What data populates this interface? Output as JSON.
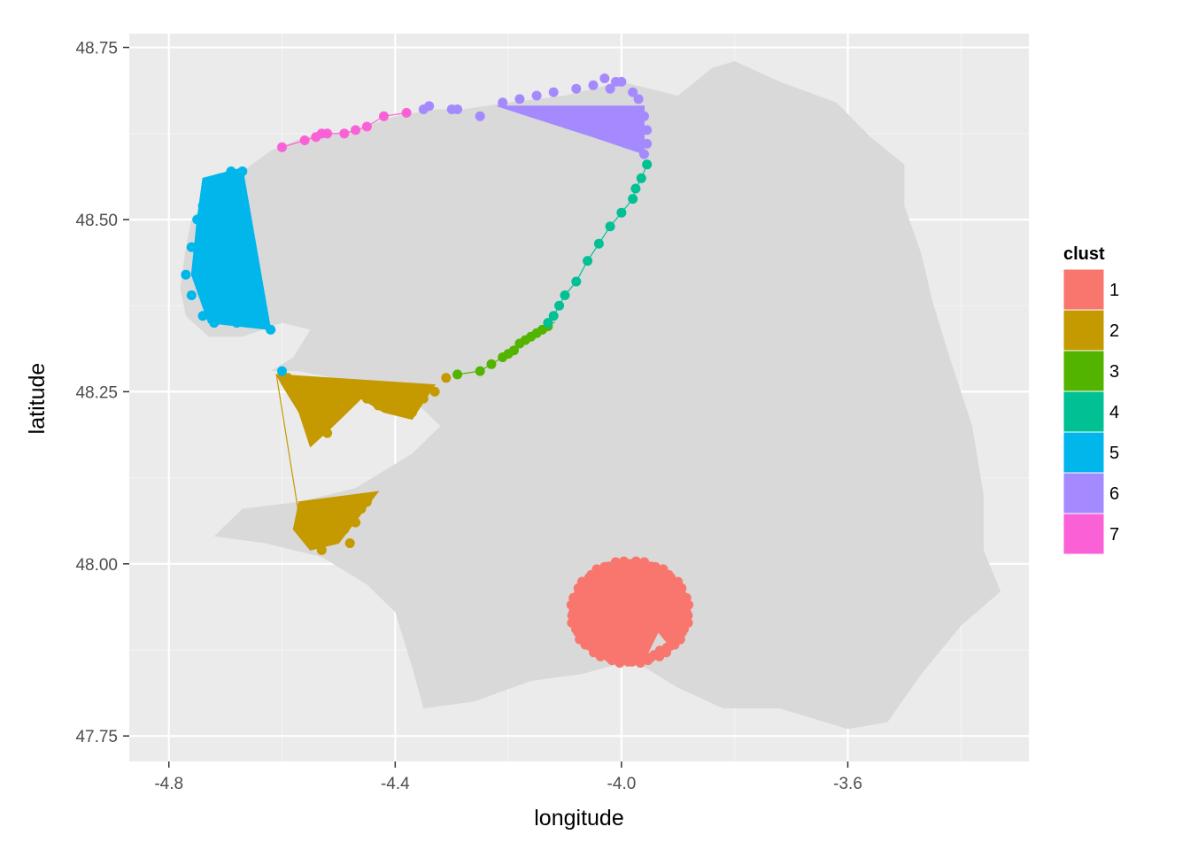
{
  "chart_data": {
    "type": "scatter",
    "xlabel": "longitude",
    "ylabel": "latitude",
    "xlim": [
      -4.87,
      -3.28
    ],
    "ylim": [
      47.713,
      48.77
    ],
    "x_ticks": [
      {
        "value": -4.8,
        "label": "-4.8"
      },
      {
        "value": -4.4,
        "label": "-4.4"
      },
      {
        "value": -4.0,
        "label": "-4.0"
      },
      {
        "value": -3.6,
        "label": "-3.6"
      }
    ],
    "y_ticks": [
      {
        "value": 48.75,
        "label": "48.75"
      },
      {
        "value": 48.5,
        "label": "48.50"
      },
      {
        "value": 48.25,
        "label": "48.25"
      },
      {
        "value": 48.0,
        "label": "48.00"
      },
      {
        "value": 47.75,
        "label": "47.75"
      }
    ],
    "x_minor": [
      -4.6,
      -4.2,
      -3.8,
      -3.4
    ],
    "y_minor": [
      48.625,
      48.375,
      48.125,
      47.875
    ],
    "grid": true,
    "legend_position": "right",
    "legend": {
      "title": "clust",
      "entries": [
        {
          "label": "1",
          "color": "#F8766D"
        },
        {
          "label": "2",
          "color": "#C49A00"
        },
        {
          "label": "3",
          "color": "#53B400"
        },
        {
          "label": "4",
          "color": "#00C094"
        },
        {
          "label": "5",
          "color": "#00B6EB"
        },
        {
          "label": "6",
          "color": "#A58AFF"
        },
        {
          "label": "7",
          "color": "#FB61D7"
        }
      ]
    },
    "colors": {
      "panel_background": "#EBEBEB",
      "land": "#D9D9D9",
      "grid": "#FFFFFF"
    },
    "land_outline": [
      [
        -4.77,
        48.46
      ],
      [
        -4.76,
        48.5
      ],
      [
        -4.73,
        48.53
      ],
      [
        -4.67,
        48.57
      ],
      [
        -4.62,
        48.6
      ],
      [
        -4.56,
        48.62
      ],
      [
        -4.47,
        48.63
      ],
      [
        -4.4,
        48.65
      ],
      [
        -4.33,
        48.66
      ],
      [
        -4.28,
        48.66
      ],
      [
        -4.2,
        48.67
      ],
      [
        -4.1,
        48.68
      ],
      [
        -4.0,
        48.7
      ],
      [
        -3.95,
        48.69
      ],
      [
        -3.9,
        48.68
      ],
      [
        -3.84,
        48.72
      ],
      [
        -3.8,
        48.73
      ],
      [
        -3.72,
        48.7
      ],
      [
        -3.62,
        48.67
      ],
      [
        -3.56,
        48.62
      ],
      [
        -3.5,
        48.58
      ],
      [
        -3.5,
        48.52
      ],
      [
        -3.47,
        48.45
      ],
      [
        -3.45,
        48.38
      ],
      [
        -3.42,
        48.3
      ],
      [
        -3.38,
        48.2
      ],
      [
        -3.36,
        48.1
      ],
      [
        -3.36,
        48.02
      ],
      [
        -3.33,
        47.96
      ],
      [
        -3.4,
        47.91
      ],
      [
        -3.47,
        47.84
      ],
      [
        -3.53,
        47.77
      ],
      [
        -3.6,
        47.76
      ],
      [
        -3.72,
        47.79
      ],
      [
        -3.82,
        47.79
      ],
      [
        -3.9,
        47.82
      ],
      [
        -3.98,
        47.86
      ],
      [
        -4.07,
        47.84
      ],
      [
        -4.16,
        47.83
      ],
      [
        -4.26,
        47.8
      ],
      [
        -4.35,
        47.79
      ],
      [
        -4.37,
        47.85
      ],
      [
        -4.4,
        47.93
      ],
      [
        -4.45,
        47.97
      ],
      [
        -4.53,
        48.01
      ],
      [
        -4.63,
        48.03
      ],
      [
        -4.72,
        48.04
      ],
      [
        -4.67,
        48.08
      ],
      [
        -4.57,
        48.09
      ],
      [
        -4.47,
        48.11
      ],
      [
        -4.41,
        48.14
      ],
      [
        -4.37,
        48.16
      ],
      [
        -4.32,
        48.2
      ],
      [
        -4.37,
        48.24
      ],
      [
        -4.45,
        48.26
      ],
      [
        -4.57,
        48.28
      ],
      [
        -4.62,
        48.28
      ],
      [
        -4.58,
        48.3
      ],
      [
        -4.55,
        48.34
      ],
      [
        -4.6,
        48.35
      ],
      [
        -4.67,
        48.33
      ],
      [
        -4.73,
        48.33
      ],
      [
        -4.77,
        48.36
      ],
      [
        -4.78,
        48.4
      ]
    ],
    "series": [
      {
        "name": "1",
        "color": "#F8766D",
        "kind": "blob",
        "center": [
          -3.985,
          47.93
        ],
        "radius": [
          0.105,
          0.075
        ],
        "count": 90
      },
      {
        "name": "2",
        "color": "#C49A00",
        "kind": "cluster2",
        "polygon_a": [
          [
            -4.61,
            48.275
          ],
          [
            -4.33,
            48.26
          ],
          [
            -4.37,
            48.21
          ],
          [
            -4.42,
            48.22
          ],
          [
            -4.46,
            48.24
          ],
          [
            -4.51,
            48.2
          ],
          [
            -4.55,
            48.17
          ],
          [
            -4.57,
            48.22
          ],
          [
            -4.6,
            48.26
          ]
        ],
        "polygon_b": [
          [
            -4.57,
            48.09
          ],
          [
            -4.43,
            48.105
          ],
          [
            -4.5,
            48.03
          ],
          [
            -4.55,
            48.02
          ],
          [
            -4.58,
            48.05
          ]
        ],
        "line": [
          [
            -4.61,
            48.275
          ],
          [
            -4.57,
            48.07
          ]
        ],
        "points": [
          [
            -4.59,
            48.27
          ],
          [
            -4.58,
            48.26
          ],
          [
            -4.56,
            48.25
          ],
          [
            -4.55,
            48.23
          ],
          [
            -4.54,
            48.22
          ],
          [
            -4.53,
            48.2
          ],
          [
            -4.52,
            48.19
          ],
          [
            -4.51,
            48.21
          ],
          [
            -4.5,
            48.23
          ],
          [
            -4.47,
            48.25
          ],
          [
            -4.45,
            48.24
          ],
          [
            -4.43,
            48.23
          ],
          [
            -4.41,
            48.24
          ],
          [
            -4.39,
            48.23
          ],
          [
            -4.37,
            48.22
          ],
          [
            -4.35,
            48.24
          ],
          [
            -4.33,
            48.25
          ],
          [
            -4.31,
            48.27
          ],
          [
            -4.56,
            48.08
          ],
          [
            -4.55,
            48.06
          ],
          [
            -4.54,
            48.04
          ],
          [
            -4.53,
            48.02
          ],
          [
            -4.52,
            48.05
          ],
          [
            -4.51,
            48.07
          ],
          [
            -4.5,
            48.08
          ],
          [
            -4.49,
            48.05
          ],
          [
            -4.48,
            48.03
          ],
          [
            -4.47,
            48.06
          ],
          [
            -4.46,
            48.08
          ],
          [
            -4.45,
            48.09
          ]
        ]
      },
      {
        "name": "3",
        "color": "#53B400",
        "kind": "path",
        "points": [
          [
            -4.29,
            48.275
          ],
          [
            -4.25,
            48.28
          ],
          [
            -4.23,
            48.29
          ],
          [
            -4.21,
            48.3
          ],
          [
            -4.2,
            48.305
          ],
          [
            -4.19,
            48.31
          ],
          [
            -4.18,
            48.32
          ],
          [
            -4.17,
            48.325
          ],
          [
            -4.16,
            48.33
          ],
          [
            -4.15,
            48.335
          ],
          [
            -4.14,
            48.34
          ],
          [
            -4.13,
            48.345
          ]
        ]
      },
      {
        "name": "4",
        "color": "#00C094",
        "kind": "path",
        "points": [
          [
            -4.13,
            48.35
          ],
          [
            -4.12,
            48.36
          ],
          [
            -4.11,
            48.375
          ],
          [
            -4.1,
            48.39
          ],
          [
            -4.08,
            48.41
          ],
          [
            -4.06,
            48.44
          ],
          [
            -4.04,
            48.465
          ],
          [
            -4.02,
            48.49
          ],
          [
            -4.0,
            48.51
          ],
          [
            -3.98,
            48.53
          ],
          [
            -3.975,
            48.545
          ],
          [
            -3.965,
            48.56
          ],
          [
            -3.955,
            48.58
          ]
        ]
      },
      {
        "name": "5",
        "color": "#00B6EB",
        "kind": "cluster5",
        "polygon": [
          [
            -4.74,
            48.56
          ],
          [
            -4.67,
            48.575
          ],
          [
            -4.62,
            48.34
          ],
          [
            -4.73,
            48.35
          ],
          [
            -4.76,
            48.42
          ],
          [
            -4.75,
            48.5
          ]
        ],
        "points": [
          [
            -4.73,
            48.55
          ],
          [
            -4.71,
            48.56
          ],
          [
            -4.69,
            48.57
          ],
          [
            -4.67,
            48.57
          ],
          [
            -4.75,
            48.5
          ],
          [
            -4.76,
            48.46
          ],
          [
            -4.77,
            48.42
          ],
          [
            -4.76,
            48.39
          ],
          [
            -4.74,
            48.36
          ],
          [
            -4.72,
            48.35
          ],
          [
            -4.7,
            48.36
          ],
          [
            -4.68,
            48.35
          ],
          [
            -4.66,
            48.35
          ],
          [
            -4.64,
            48.35
          ],
          [
            -4.62,
            48.34
          ],
          [
            -4.6,
            48.28
          ],
          [
            -4.74,
            48.52
          ],
          [
            -4.72,
            48.48
          ],
          [
            -4.73,
            48.44
          ],
          [
            -4.71,
            48.41
          ],
          [
            -4.7,
            48.38
          ]
        ]
      },
      {
        "name": "6",
        "color": "#A58AFF",
        "kind": "cluster6",
        "polygon": [
          [
            -4.22,
            48.665
          ],
          [
            -3.96,
            48.665
          ],
          [
            -3.96,
            48.595
          ],
          [
            -4.05,
            48.62
          ]
        ],
        "points": [
          [
            -4.35,
            48.66
          ],
          [
            -4.34,
            48.665
          ],
          [
            -4.3,
            48.66
          ],
          [
            -4.29,
            48.66
          ],
          [
            -4.25,
            48.65
          ],
          [
            -4.21,
            48.67
          ],
          [
            -4.18,
            48.675
          ],
          [
            -4.15,
            48.68
          ],
          [
            -4.12,
            48.685
          ],
          [
            -4.08,
            48.69
          ],
          [
            -4.05,
            48.695
          ],
          [
            -4.02,
            48.69
          ],
          [
            -4.01,
            48.7
          ],
          [
            -4.03,
            48.705
          ],
          [
            -4.0,
            48.7
          ],
          [
            -3.98,
            48.685
          ],
          [
            -3.97,
            48.675
          ],
          [
            -3.96,
            48.65
          ],
          [
            -3.955,
            48.63
          ],
          [
            -3.955,
            48.61
          ],
          [
            -3.96,
            48.595
          ]
        ]
      },
      {
        "name": "7",
        "color": "#FB61D7",
        "kind": "path",
        "points": [
          [
            -4.6,
            48.605
          ],
          [
            -4.56,
            48.615
          ],
          [
            -4.54,
            48.62
          ],
          [
            -4.53,
            48.625
          ],
          [
            -4.52,
            48.625
          ],
          [
            -4.49,
            48.625
          ],
          [
            -4.47,
            48.63
          ],
          [
            -4.45,
            48.635
          ],
          [
            -4.42,
            48.65
          ],
          [
            -4.38,
            48.655
          ]
        ]
      }
    ]
  }
}
